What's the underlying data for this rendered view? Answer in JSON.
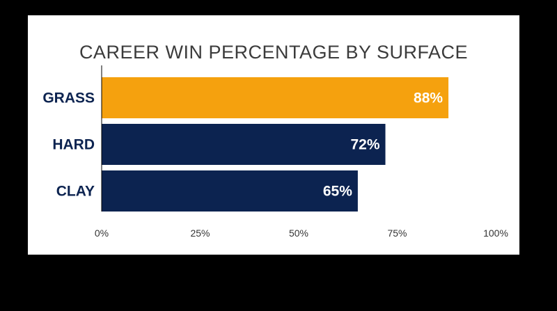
{
  "chart_data": {
    "type": "bar",
    "orientation": "horizontal",
    "title": "CAREER WIN PERCENTAGE BY SURFACE",
    "categories": [
      "GRASS",
      "HARD",
      "CLAY"
    ],
    "values": [
      88,
      72,
      65
    ],
    "value_labels": [
      "88%",
      "72%",
      "65%"
    ],
    "xlim": [
      0,
      100
    ],
    "ticks": [
      0,
      25,
      50,
      75,
      100
    ],
    "tick_labels": [
      "0%",
      "25%",
      "50%",
      "75%",
      "100%"
    ],
    "grid": false,
    "bar_colors": [
      "#F5A10E",
      "#0C2350",
      "#0C2350"
    ],
    "label_color": "#0C2350"
  }
}
